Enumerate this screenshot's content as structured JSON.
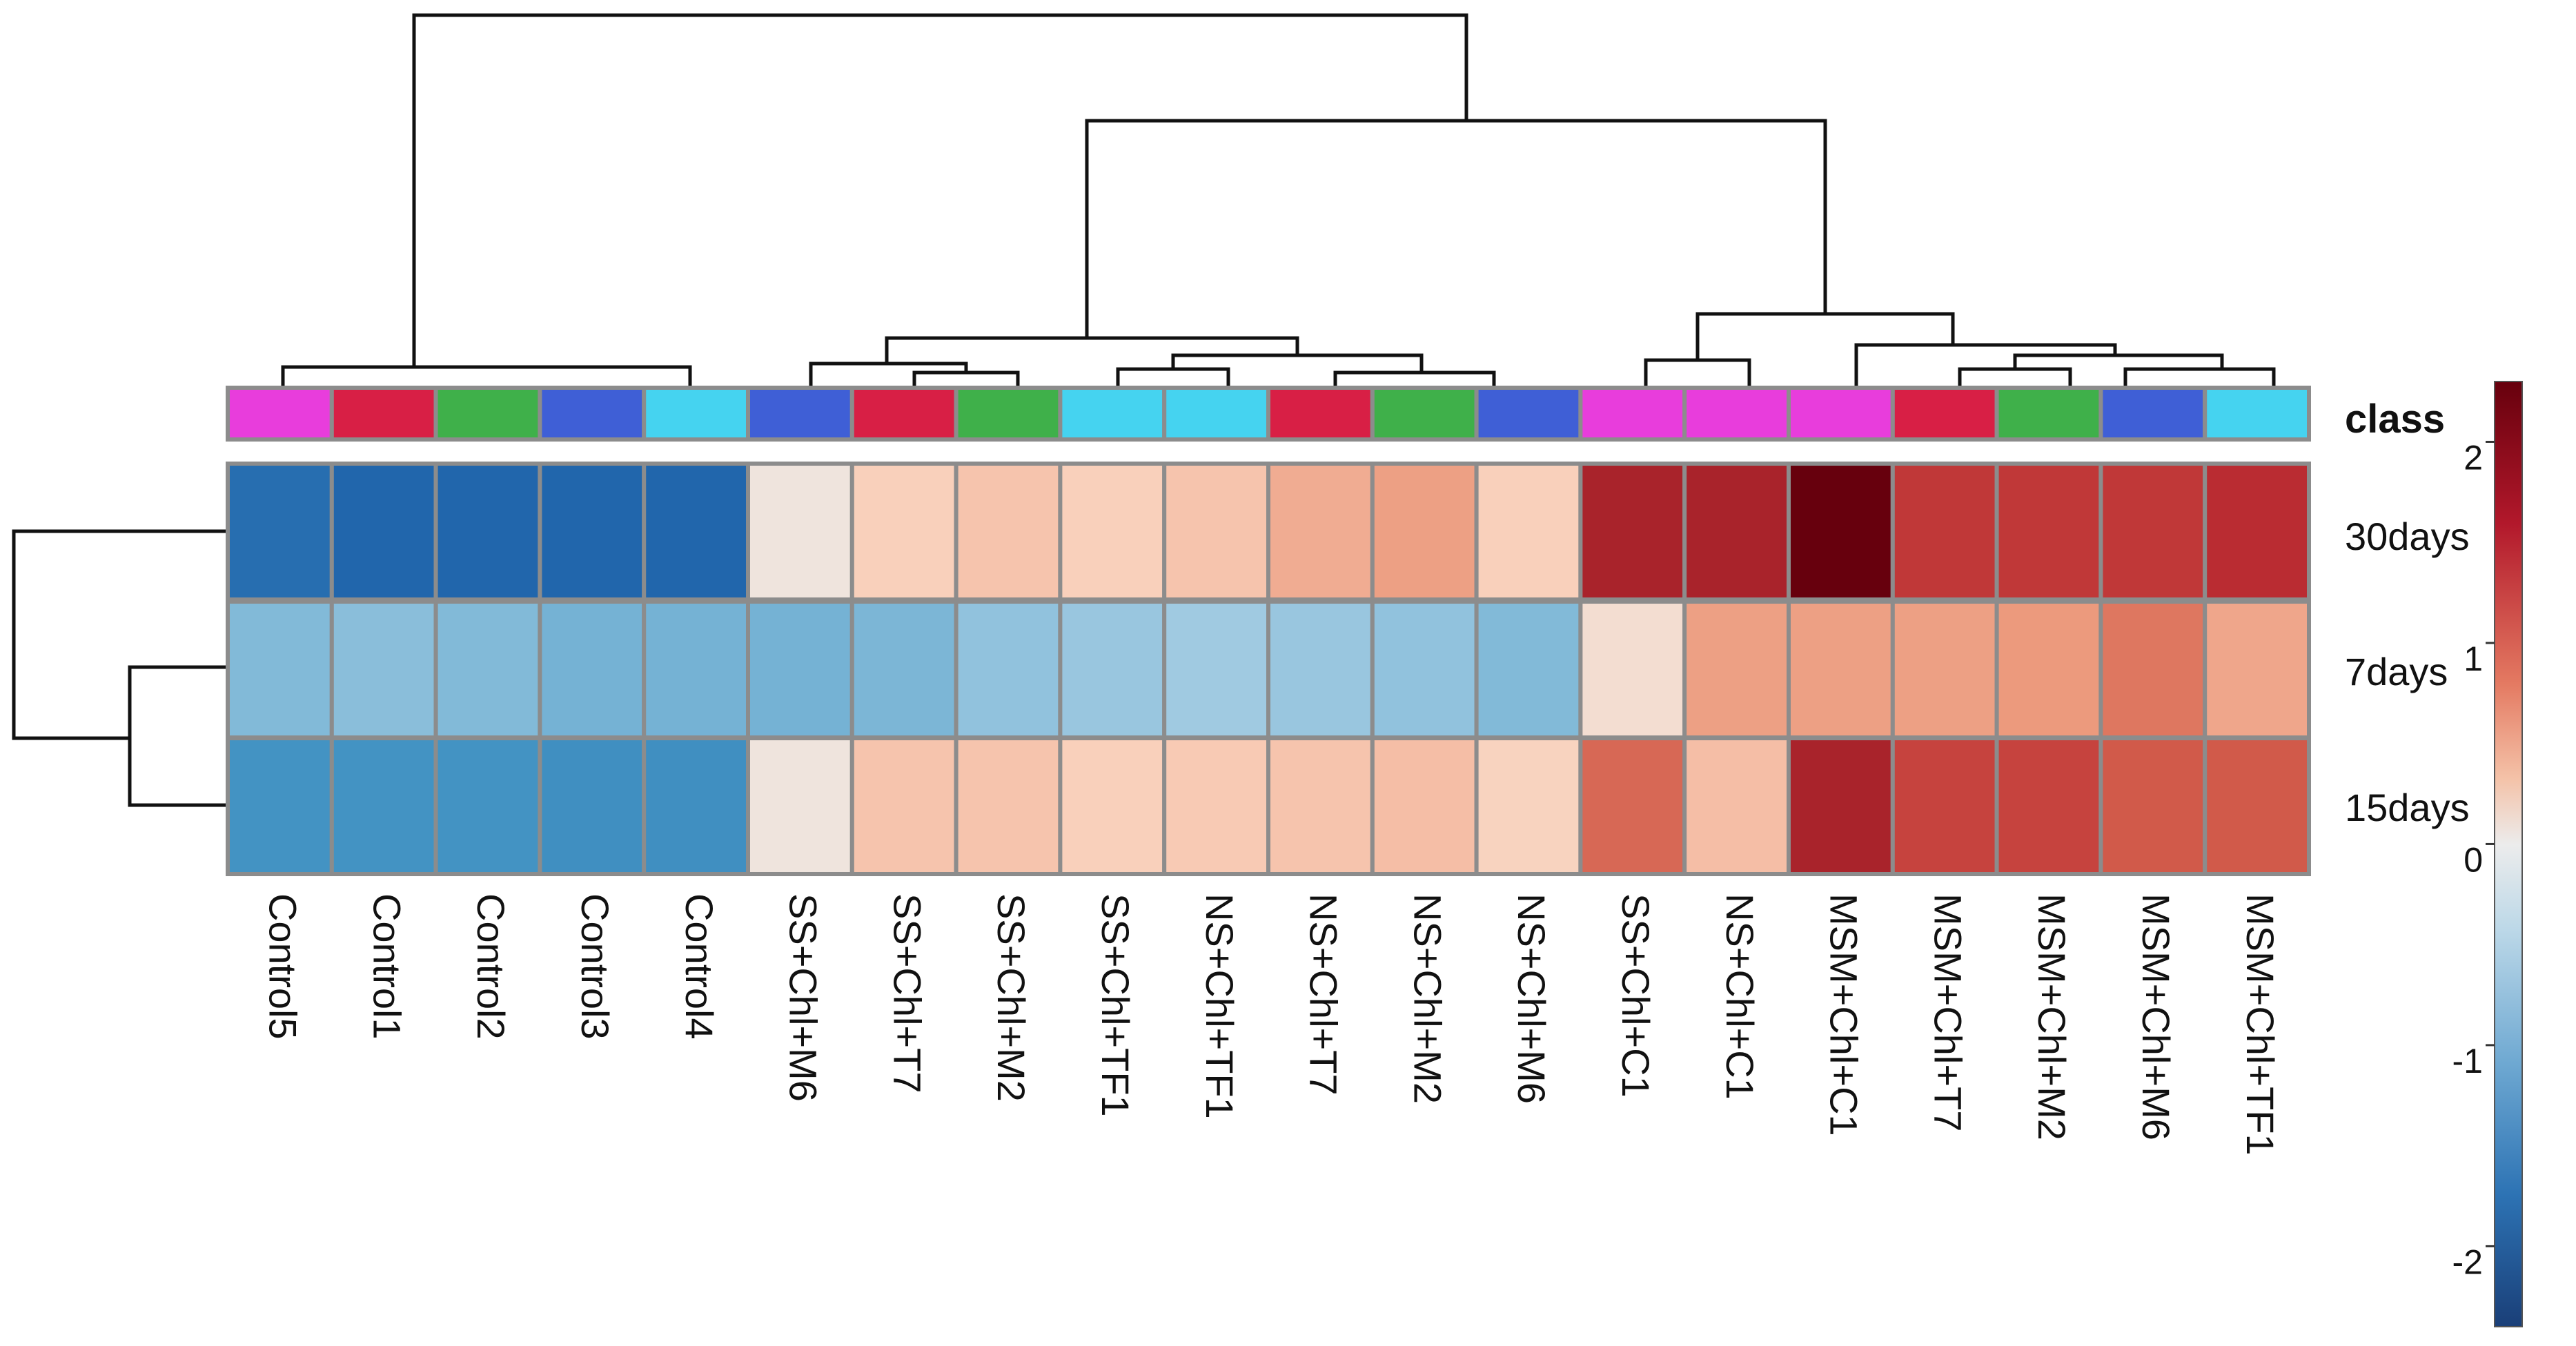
{
  "chart_data": {
    "type": "heatmap",
    "title": "",
    "columns": [
      "Control5",
      "Control1",
      "Control2",
      "Control3",
      "Control4",
      "SS+Chl+M6",
      "SS+Chl+T7",
      "SS+Chl+M2",
      "SS+Chl+TF1",
      "NS+Chl+TF1",
      "NS+Chl+T7",
      "NS+Chl+M2",
      "NS+Chl+M6",
      "SS+Chl+C1",
      "NS+Chl+C1",
      "MSM+Chl+C1",
      "MSM+Chl+T7",
      "MSM+Chl+M2",
      "MSM+Chl+M6",
      "MSM+Chl+TF1"
    ],
    "rows": [
      "30days",
      "7days",
      "15days"
    ],
    "values": [
      [
        -1.9,
        -2.0,
        -2.0,
        -2.0,
        -2.0,
        0.1,
        0.5,
        0.6,
        0.5,
        0.6,
        0.8,
        0.9,
        0.5,
        1.9,
        1.9,
        2.3,
        1.7,
        1.7,
        1.7,
        1.8
      ],
      [
        -0.9,
        -0.85,
        -0.9,
        -1.0,
        -1.0,
        -1.0,
        -0.95,
        -0.8,
        -0.75,
        -0.7,
        -0.75,
        -0.8,
        -0.9,
        0.25,
        0.9,
        0.9,
        0.9,
        0.95,
        1.2,
        0.85
      ],
      [
        -1.4,
        -1.4,
        -1.4,
        -1.45,
        -1.45,
        0.1,
        0.6,
        0.6,
        0.5,
        0.55,
        0.6,
        0.65,
        0.45,
        1.3,
        0.65,
        1.9,
        1.6,
        1.6,
        1.4,
        1.4
      ]
    ],
    "class_row_label": "class",
    "class_colors": [
      "#e83ddc",
      "#d81f45",
      "#3fb04a",
      "#3f5fd6",
      "#45d3f0",
      "#3f5fd6",
      "#d81f45",
      "#3fb04a",
      "#45d3f0",
      "#45d3f0",
      "#d81f45",
      "#3fb04a",
      "#3f5fd6",
      "#e83ddc",
      "#e83ddc",
      "#e83ddc",
      "#d81f45",
      "#3fb04a",
      "#3f5fd6",
      "#45d3f0"
    ],
    "colorbar": {
      "range": [
        -2.4,
        2.3
      ],
      "ticks": [
        2,
        1,
        0,
        -1,
        -2
      ],
      "tick_labels": [
        "2",
        "1",
        "0",
        "-1",
        "-2"
      ],
      "low_color": "#1d4f8f",
      "mid_color": "#ececec",
      "high_color": "#67000d"
    },
    "column_dendrogram": true,
    "row_dendrogram": true
  }
}
